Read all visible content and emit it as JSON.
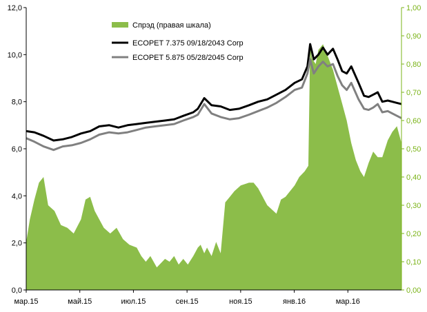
{
  "colors": {
    "spread": "#8cbd4a",
    "bond1": "#000000",
    "bond2": "#808080",
    "right_axis": "#7ab317",
    "left_axis": "#000000"
  },
  "legend": [
    {
      "label": "Спрэд (правая шкала)",
      "key": "spread"
    },
    {
      "label": "ECOPET 7.375 09/18/2043 Corp",
      "key": "bond1"
    },
    {
      "label": "ECOPET 5.875 05/28/2045 Corp",
      "key": "bond2"
    }
  ],
  "chart_data": {
    "type": "line",
    "x_ticks": [
      "мар.15",
      "май.15",
      "июл.15",
      "сен.15",
      "ноя.15",
      "янв.16",
      "мар.16"
    ],
    "y_left": {
      "ticks": [
        "0,0",
        "2,0",
        "4,0",
        "6,0",
        "8,0",
        "10,0",
        "12,0"
      ],
      "lim": [
        0,
        12
      ]
    },
    "y_right": {
      "ticks": [
        "0,00",
        "0,10",
        "0,20",
        "0,30",
        "0,40",
        "0,50",
        "0,60",
        "0,70",
        "0,80",
        "0,90",
        "1,00"
      ],
      "lim": [
        0,
        1
      ]
    },
    "x_range": [
      "2015-03-01",
      "2016-04-15"
    ],
    "grid": false,
    "legend_position": "top-center",
    "series": [
      {
        "name": "Спрэд (правая шкала)",
        "axis": "right",
        "style": "area",
        "x": [
          "2015-03-01",
          "2015-03-05",
          "2015-03-10",
          "2015-03-15",
          "2015-03-20",
          "2015-03-25",
          "2015-04-01",
          "2015-04-08",
          "2015-04-15",
          "2015-04-22",
          "2015-04-30",
          "2015-05-05",
          "2015-05-10",
          "2015-05-15",
          "2015-05-20",
          "2015-05-25",
          "2015-06-01",
          "2015-06-08",
          "2015-06-15",
          "2015-06-22",
          "2015-06-30",
          "2015-07-05",
          "2015-07-10",
          "2015-07-15",
          "2015-07-22",
          "2015-07-31",
          "2015-08-05",
          "2015-08-10",
          "2015-08-15",
          "2015-08-20",
          "2015-08-25",
          "2015-08-31",
          "2015-09-05",
          "2015-09-08",
          "2015-09-12",
          "2015-09-15",
          "2015-09-20",
          "2015-09-25",
          "2015-09-30",
          "2015-10-05",
          "2015-10-10",
          "2015-10-15",
          "2015-10-22",
          "2015-10-31",
          "2015-11-05",
          "2015-11-10",
          "2015-11-20",
          "2015-11-30",
          "2015-12-05",
          "2015-12-10",
          "2015-12-15",
          "2015-12-20",
          "2015-12-25",
          "2015-12-31",
          "2016-01-04",
          "2016-01-06",
          "2016-01-08",
          "2016-01-12",
          "2016-01-15",
          "2016-01-20",
          "2016-01-25",
          "2016-01-31",
          "2016-02-05",
          "2016-02-10",
          "2016-02-15",
          "2016-02-20",
          "2016-02-25",
          "2016-03-01",
          "2016-03-05",
          "2016-03-10",
          "2016-03-15",
          "2016-03-20",
          "2016-03-25",
          "2016-03-31",
          "2016-04-05",
          "2016-04-10",
          "2016-04-15"
        ],
        "values": [
          0.17,
          0.25,
          0.32,
          0.38,
          0.4,
          0.3,
          0.28,
          0.23,
          0.22,
          0.2,
          0.25,
          0.32,
          0.33,
          0.28,
          0.25,
          0.22,
          0.2,
          0.22,
          0.18,
          0.16,
          0.15,
          0.12,
          0.1,
          0.12,
          0.08,
          0.11,
          0.1,
          0.12,
          0.09,
          0.11,
          0.09,
          0.12,
          0.15,
          0.16,
          0.13,
          0.15,
          0.12,
          0.17,
          0.13,
          0.31,
          0.33,
          0.35,
          0.37,
          0.38,
          0.38,
          0.36,
          0.3,
          0.27,
          0.32,
          0.33,
          0.35,
          0.37,
          0.4,
          0.42,
          0.44,
          0.86,
          0.82,
          0.8,
          0.85,
          0.87,
          0.83,
          0.78,
          0.72,
          0.66,
          0.6,
          0.52,
          0.46,
          0.42,
          0.4,
          0.45,
          0.49,
          0.47,
          0.47,
          0.53,
          0.56,
          0.58,
          0.52
        ]
      },
      {
        "name": "ECOPET 7.375 09/18/2043 Corp",
        "axis": "left",
        "style": "line",
        "x": [
          "2015-03-01",
          "2015-03-10",
          "2015-03-20",
          "2015-03-31",
          "2015-04-10",
          "2015-04-20",
          "2015-04-30",
          "2015-05-10",
          "2015-05-20",
          "2015-05-31",
          "2015-06-10",
          "2015-06-20",
          "2015-06-30",
          "2015-07-10",
          "2015-07-20",
          "2015-07-31",
          "2015-08-10",
          "2015-08-20",
          "2015-08-31",
          "2015-09-05",
          "2015-09-12",
          "2015-09-20",
          "2015-09-30",
          "2015-10-10",
          "2015-10-20",
          "2015-10-31",
          "2015-11-10",
          "2015-11-20",
          "2015-11-30",
          "2015-12-10",
          "2015-12-20",
          "2015-12-28",
          "2016-01-03",
          "2016-01-06",
          "2016-01-10",
          "2016-01-15",
          "2016-01-20",
          "2016-01-25",
          "2016-01-31",
          "2016-02-05",
          "2016-02-10",
          "2016-02-15",
          "2016-02-20",
          "2016-02-28",
          "2016-03-05",
          "2016-03-10",
          "2016-03-15",
          "2016-03-20",
          "2016-03-25",
          "2016-03-31",
          "2016-04-05",
          "2016-04-10",
          "2016-04-15"
        ],
        "values": [
          6.75,
          6.7,
          6.55,
          6.35,
          6.4,
          6.5,
          6.65,
          6.75,
          6.95,
          7.0,
          6.9,
          7.0,
          7.05,
          7.1,
          7.15,
          7.2,
          7.25,
          7.4,
          7.55,
          7.7,
          8.15,
          7.85,
          7.8,
          7.65,
          7.7,
          7.85,
          8.0,
          8.1,
          8.3,
          8.5,
          8.8,
          8.95,
          9.5,
          10.45,
          9.8,
          10.0,
          10.3,
          10.0,
          10.25,
          9.8,
          9.3,
          9.2,
          9.5,
          8.8,
          8.25,
          8.2,
          8.3,
          8.4,
          8.0,
          8.05,
          8.0,
          7.95,
          7.9
        ]
      },
      {
        "name": "ECOPET 5.875 05/28/2045 Corp",
        "axis": "left",
        "style": "line",
        "x": [
          "2015-03-01",
          "2015-03-10",
          "2015-03-20",
          "2015-03-31",
          "2015-04-10",
          "2015-04-20",
          "2015-04-30",
          "2015-05-10",
          "2015-05-20",
          "2015-05-31",
          "2015-06-10",
          "2015-06-20",
          "2015-06-30",
          "2015-07-10",
          "2015-07-20",
          "2015-07-31",
          "2015-08-10",
          "2015-08-20",
          "2015-08-31",
          "2015-09-05",
          "2015-09-12",
          "2015-09-20",
          "2015-09-30",
          "2015-10-10",
          "2015-10-20",
          "2015-10-31",
          "2015-11-10",
          "2015-11-20",
          "2015-11-30",
          "2015-12-10",
          "2015-12-20",
          "2015-12-28",
          "2016-01-03",
          "2016-01-06",
          "2016-01-10",
          "2016-01-15",
          "2016-01-20",
          "2016-01-25",
          "2016-01-31",
          "2016-02-05",
          "2016-02-10",
          "2016-02-15",
          "2016-02-20",
          "2016-02-28",
          "2016-03-05",
          "2016-03-10",
          "2016-03-15",
          "2016-03-20",
          "2016-03-25",
          "2016-03-31",
          "2016-04-05",
          "2016-04-10",
          "2016-04-15"
        ],
        "values": [
          6.45,
          6.3,
          6.1,
          5.95,
          6.1,
          6.15,
          6.25,
          6.4,
          6.6,
          6.7,
          6.65,
          6.7,
          6.8,
          6.9,
          6.95,
          7.0,
          7.05,
          7.2,
          7.35,
          7.45,
          7.9,
          7.5,
          7.35,
          7.25,
          7.3,
          7.45,
          7.6,
          7.75,
          7.95,
          8.2,
          8.5,
          8.6,
          9.2,
          9.8,
          9.2,
          9.5,
          9.7,
          9.5,
          9.6,
          9.1,
          8.7,
          8.5,
          8.8,
          8.1,
          7.7,
          7.65,
          7.75,
          7.9,
          7.55,
          7.6,
          7.5,
          7.4,
          7.3
        ]
      }
    ]
  }
}
